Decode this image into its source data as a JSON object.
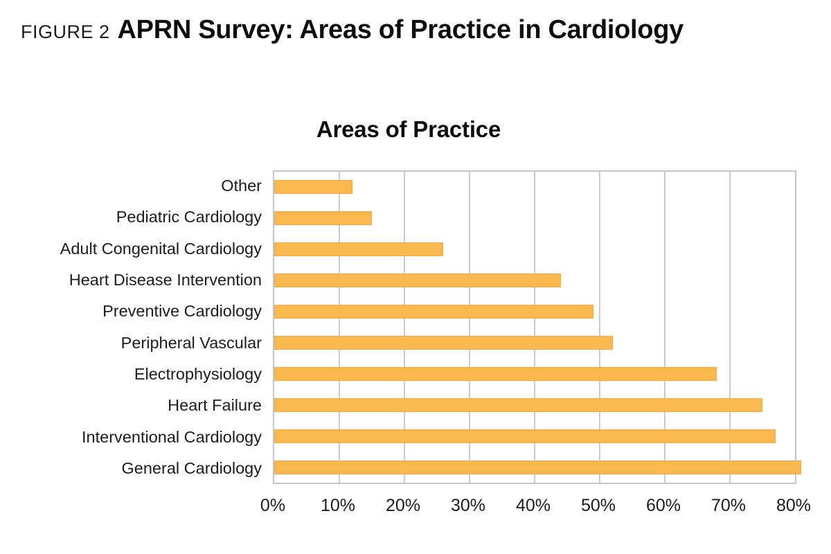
{
  "header": {
    "figure_label": "FIGURE 2",
    "title": "APRN Survey: Areas of Practice in Cardiology"
  },
  "chart_data": {
    "type": "bar",
    "orientation": "horizontal",
    "title": "Areas of Practice",
    "categories": [
      "Other",
      "Pediatric Cardiology",
      "Adult Congenital Cardiology",
      "Heart Disease Intervention",
      "Preventive Cardiology",
      "Peripheral Vascular",
      "Electrophysiology",
      "Heart Failure",
      "Interventional Cardiology",
      "General Cardiology"
    ],
    "values": [
      12,
      15,
      26,
      44,
      49,
      52,
      68,
      75,
      77,
      81
    ],
    "unit": "%",
    "xlabel": "",
    "ylabel": "",
    "xlim": [
      0,
      80
    ],
    "xticks": [
      "0%",
      "10%",
      "20%",
      "30%",
      "40%",
      "50%",
      "60%",
      "70%",
      "80%"
    ],
    "grid": "vertical",
    "legend": "none",
    "bar_color": "#fbb84e",
    "gridline_color": "#c9cacb",
    "text_color": "#1c1c1e"
  }
}
